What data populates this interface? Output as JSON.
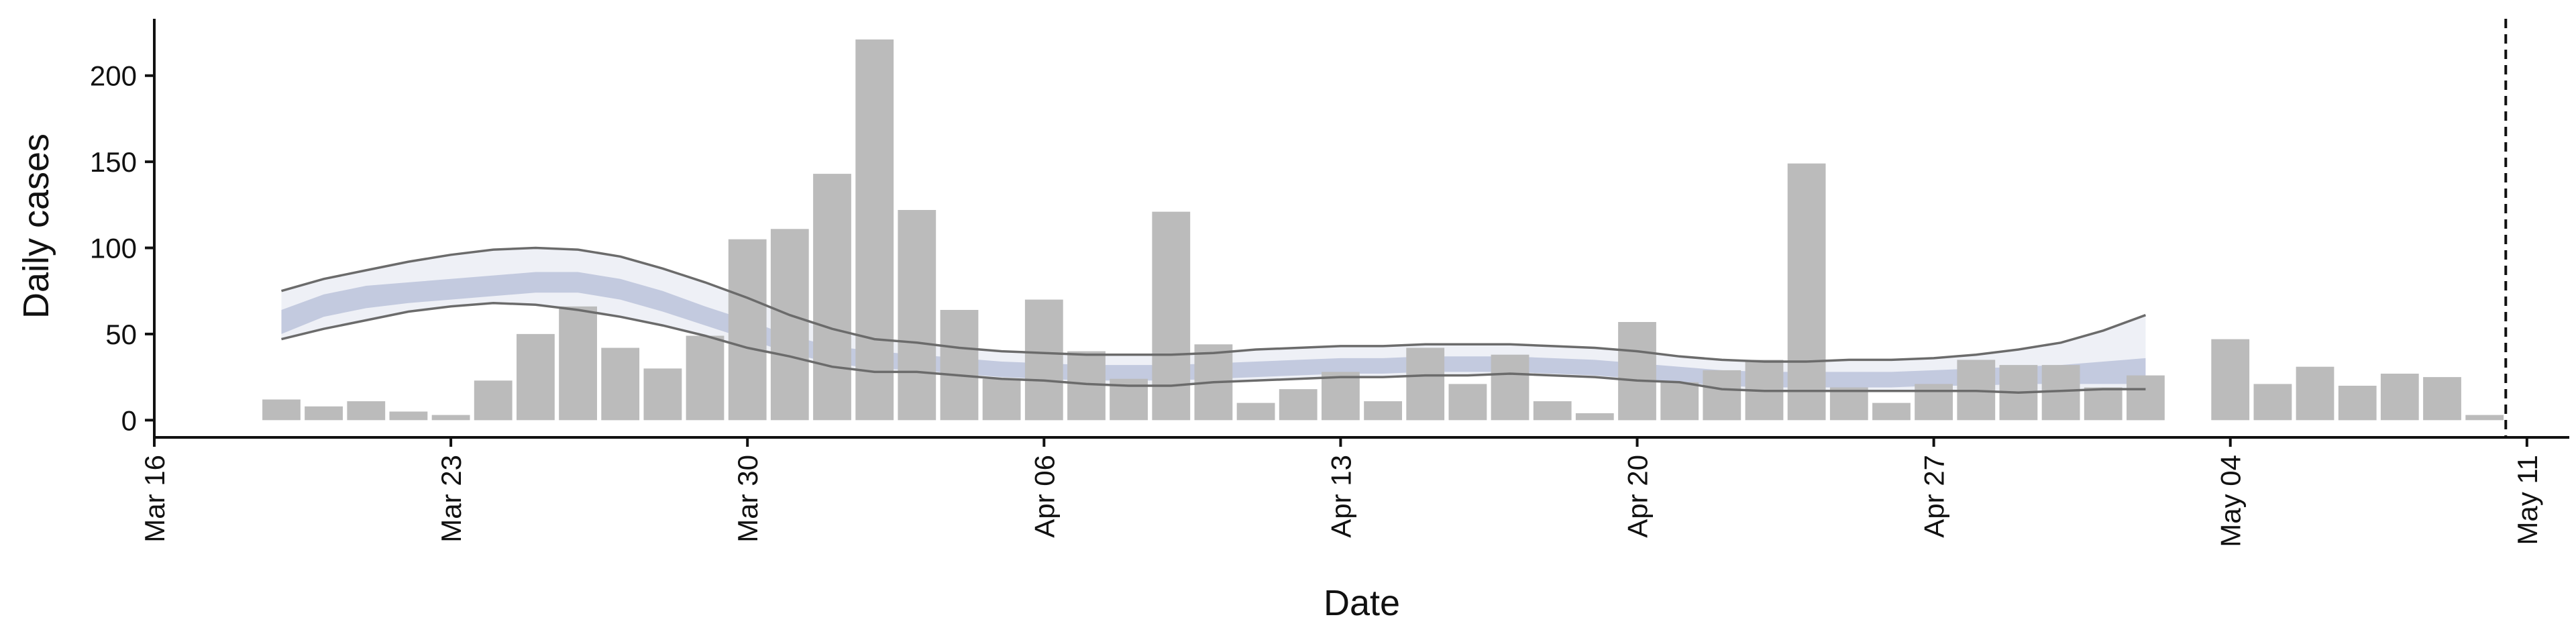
{
  "chart_data": {
    "type": "bar",
    "xlabel": "Date",
    "ylabel": "Daily cases",
    "x_ticks": [
      {
        "date": "2020-03-16",
        "label": "Mar 16"
      },
      {
        "date": "2020-03-23",
        "label": "Mar 23"
      },
      {
        "date": "2020-03-30",
        "label": "Mar 30"
      },
      {
        "date": "2020-04-06",
        "label": "Apr 06"
      },
      {
        "date": "2020-04-13",
        "label": "Apr 13"
      },
      {
        "date": "2020-04-20",
        "label": "Apr 20"
      },
      {
        "date": "2020-04-27",
        "label": "Apr 27"
      },
      {
        "date": "2020-05-04",
        "label": "May 04"
      },
      {
        "date": "2020-05-11",
        "label": "May 11"
      }
    ],
    "y_ticks": [
      0,
      50,
      100,
      150,
      200
    ],
    "xlim": [
      "2020-03-16",
      "2020-05-12"
    ],
    "ylim": [
      -10,
      233
    ],
    "grid": false,
    "legend": "none",
    "colors": {
      "bars": "#bbbbbb",
      "band_outer": "#eef0f6",
      "band_inner": "#c3cadf",
      "interval_lines": "#6b6b6b",
      "axis": "#111111"
    },
    "bars": {
      "dates": [
        "2020-03-19",
        "2020-03-20",
        "2020-03-21",
        "2020-03-22",
        "2020-03-23",
        "2020-03-24",
        "2020-03-25",
        "2020-03-26",
        "2020-03-27",
        "2020-03-28",
        "2020-03-29",
        "2020-03-30",
        "2020-03-31",
        "2020-04-01",
        "2020-04-02",
        "2020-04-03",
        "2020-04-04",
        "2020-04-05",
        "2020-04-06",
        "2020-04-07",
        "2020-04-08",
        "2020-04-09",
        "2020-04-10",
        "2020-04-11",
        "2020-04-12",
        "2020-04-13",
        "2020-04-14",
        "2020-04-15",
        "2020-04-16",
        "2020-04-17",
        "2020-04-18",
        "2020-04-19",
        "2020-04-20",
        "2020-04-21",
        "2020-04-22",
        "2020-04-23",
        "2020-04-24",
        "2020-04-25",
        "2020-04-26",
        "2020-04-27",
        "2020-04-28",
        "2020-04-29",
        "2020-04-30",
        "2020-05-01",
        "2020-05-02",
        "2020-05-04",
        "2020-05-05",
        "2020-05-06",
        "2020-05-07",
        "2020-05-08",
        "2020-05-09",
        "2020-05-10"
      ],
      "values": [
        12,
        8,
        11,
        5,
        3,
        23,
        50,
        66,
        42,
        30,
        49,
        105,
        111,
        143,
        221,
        122,
        64,
        24,
        70,
        40,
        24,
        121,
        44,
        10,
        18,
        28,
        11,
        42,
        21,
        38,
        11,
        4,
        57,
        22,
        29,
        35,
        149,
        19,
        10,
        21,
        35,
        32,
        32,
        19,
        26,
        47,
        21,
        31,
        20,
        27,
        25,
        3
      ]
    },
    "estimate": {
      "dates": [
        "2020-03-19",
        "2020-03-20",
        "2020-03-21",
        "2020-03-22",
        "2020-03-23",
        "2020-03-24",
        "2020-03-25",
        "2020-03-26",
        "2020-03-27",
        "2020-03-28",
        "2020-03-29",
        "2020-03-30",
        "2020-03-31",
        "2020-04-01",
        "2020-04-02",
        "2020-04-03",
        "2020-04-04",
        "2020-04-05",
        "2020-04-06",
        "2020-04-07",
        "2020-04-08",
        "2020-04-09",
        "2020-04-10",
        "2020-04-11",
        "2020-04-12",
        "2020-04-13",
        "2020-04-14",
        "2020-04-15",
        "2020-04-16",
        "2020-04-17",
        "2020-04-18",
        "2020-04-19",
        "2020-04-20",
        "2020-04-21",
        "2020-04-22",
        "2020-04-23",
        "2020-04-24",
        "2020-04-25",
        "2020-04-26",
        "2020-04-27",
        "2020-04-28",
        "2020-04-29",
        "2020-04-30",
        "2020-05-01",
        "2020-05-02"
      ],
      "upper": [
        75,
        82,
        87,
        92,
        96,
        99,
        100,
        99,
        95,
        88,
        80,
        71,
        61,
        53,
        47,
        45,
        42,
        40,
        39,
        38,
        38,
        38,
        39,
        41,
        42,
        43,
        43,
        44,
        44,
        44,
        43,
        42,
        40,
        37,
        35,
        34,
        34,
        35,
        35,
        36,
        38,
        41,
        45,
        52,
        61
      ],
      "inner_upper": [
        64,
        73,
        78,
        80,
        82,
        84,
        86,
        86,
        82,
        75,
        66,
        58,
        49,
        43,
        40,
        38,
        36,
        34,
        33,
        32,
        32,
        32,
        33,
        34,
        35,
        36,
        36,
        37,
        37,
        37,
        36,
        35,
        33,
        31,
        29,
        28,
        28,
        28,
        28,
        29,
        30,
        31,
        32,
        34,
        36
      ],
      "inner_lower": [
        50,
        60,
        65,
        68,
        70,
        72,
        74,
        74,
        70,
        63,
        55,
        47,
        39,
        33,
        30,
        29,
        27,
        25,
        24,
        23,
        23,
        23,
        24,
        25,
        26,
        27,
        27,
        28,
        28,
        28,
        27,
        26,
        24,
        22,
        20,
        19,
        19,
        19,
        19,
        20,
        20,
        21,
        21,
        21,
        21
      ],
      "lower": [
        47,
        53,
        58,
        63,
        66,
        68,
        67,
        64,
        60,
        55,
        49,
        42,
        37,
        31,
        28,
        28,
        26,
        24,
        23,
        21,
        20,
        20,
        22,
        23,
        24,
        25,
        25,
        26,
        26,
        27,
        26,
        25,
        23,
        22,
        18,
        17,
        17,
        17,
        17,
        17,
        17,
        16,
        17,
        18,
        18
      ]
    },
    "vline_date": "2020-05-10"
  }
}
